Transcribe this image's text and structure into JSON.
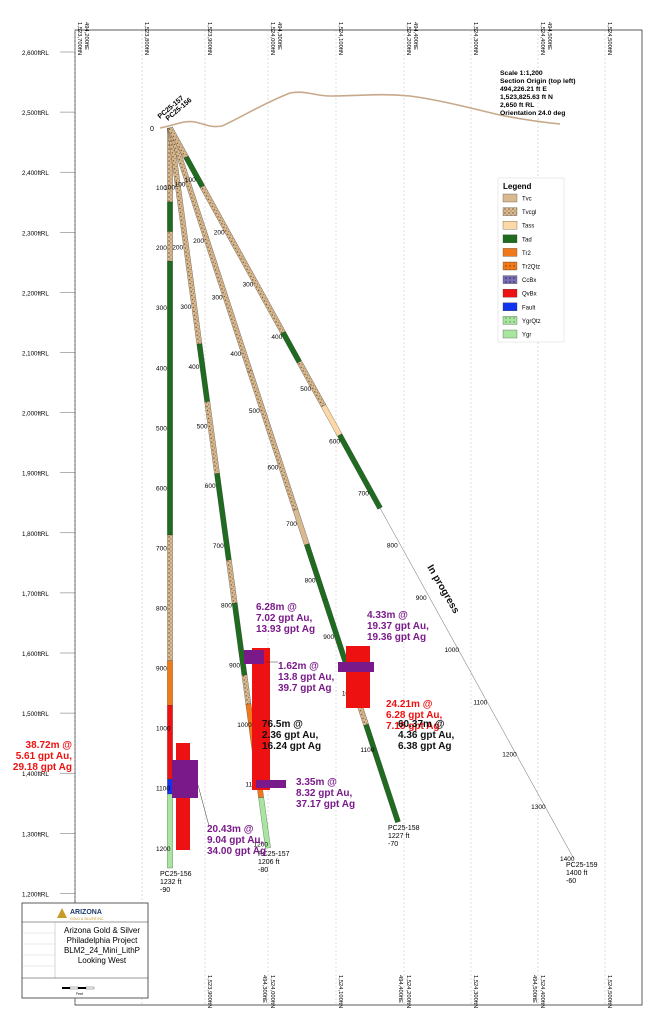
{
  "scale_info": {
    "lines": [
      "Scale 1:1,200",
      "Section Origin (top left)",
      "494,226.21 ft E",
      "1,523,825.63 ft N",
      "2,650 ft RL",
      "Orientation 24.0 deg"
    ]
  },
  "rl_labels": [
    "2,600ftRL",
    "2,500ftRL",
    "2,400ftRL",
    "2,300ftRL",
    "2,200ftRL",
    "2,100ftRL",
    "2,000ftRL",
    "1,900ftRL",
    "1,800ftRL",
    "1,700ftRL",
    "1,600ftRL",
    "1,500ftRL",
    "1,400ftRL",
    "1,300ftRL",
    "1,200ftRL"
  ],
  "top_grid_labels": [
    {
      "a": "1,523,700ftN",
      "b": "494,200ftE"
    },
    {
      "a": "1,523,800ftN",
      "b": ""
    },
    {
      "a": "1,523,900ftN",
      "b": ""
    },
    {
      "a": "1,524,000ftN",
      "b": "494,300ftE"
    },
    {
      "a": "1,524,100ftN",
      "b": ""
    },
    {
      "a": "1,524,200ftN",
      "b": "494,400ftE"
    },
    {
      "a": "1,524,300ftN",
      "b": ""
    },
    {
      "a": "1,524,400ftN",
      "b": "494,500ftE"
    },
    {
      "a": "1,524,500ftN",
      "b": ""
    }
  ],
  "bottom_grid_labels": [
    {
      "a": "1,523,900ftN",
      "b": ""
    },
    {
      "a": "1,524,000ftN",
      "b": "494,300ftE"
    },
    {
      "a": "1,524,100ftN",
      "b": ""
    },
    {
      "a": "1,524,200ftN",
      "b": "494,400ftE"
    },
    {
      "a": "1,524,300ftN",
      "b": ""
    },
    {
      "a": "1,524,400ftN",
      "b": "494,500ftE"
    },
    {
      "a": "1,524,500ftN",
      "b": ""
    }
  ],
  "legend": {
    "title": "Legend",
    "items": [
      {
        "code": "Tvc",
        "color": "#d9b98f",
        "pattern": "solid"
      },
      {
        "code": "Tvcgl",
        "color": "#d9b98f",
        "pattern": "dots"
      },
      {
        "code": "Tass",
        "color": "#fbd8a5",
        "pattern": "solid"
      },
      {
        "code": "Tad",
        "color": "#1f6b1f",
        "pattern": "solid"
      },
      {
        "code": "Tr2",
        "color": "#f07a1a",
        "pattern": "solid"
      },
      {
        "code": "Tr2Qtz",
        "color": "#f07a1a",
        "pattern": "dots"
      },
      {
        "code": "CcBx",
        "color": "#7b6fb3",
        "pattern": "dots"
      },
      {
        "code": "QvBx",
        "color": "#ee1111",
        "pattern": "solid"
      },
      {
        "code": "Fault",
        "color": "#1133ee",
        "pattern": "solid"
      },
      {
        "code": "YgrQtz",
        "color": "#a8e6a0",
        "pattern": "dots"
      },
      {
        "code": "Ygr",
        "color": "#a8e6a0",
        "pattern": "solid"
      }
    ]
  },
  "collar": {
    "label_a": "PC25-157",
    "label_b": "PC25-156",
    "depth_zero": "0"
  },
  "holes": [
    {
      "id": "PC25-156",
      "length": "1232 ft",
      "dip": "-90",
      "depth_labels": [
        "100",
        "200",
        "300",
        "400",
        "500",
        "600",
        "700",
        "800",
        "900",
        "1000",
        "1100",
        "1200"
      ]
    },
    {
      "id": "PC25-157",
      "length": "1206 ft",
      "dip": "-80",
      "depth_labels": [
        "100",
        "200",
        "300",
        "400",
        "500",
        "600",
        "700",
        "800",
        "900",
        "1000",
        "1100",
        "1200"
      ]
    },
    {
      "id": "PC25-158",
      "length": "1227 ft",
      "dip": "-70",
      "depth_labels": [
        "100",
        "200",
        "300",
        "400",
        "500",
        "600",
        "700",
        "800",
        "900",
        "1000",
        "1100"
      ]
    },
    {
      "id": "PC25-159",
      "length": "1400 ft",
      "dip": "-60",
      "depth_labels": [
        "100",
        "200",
        "300",
        "400",
        "500",
        "600",
        "700",
        "800",
        "900",
        "1000",
        "1100",
        "1200",
        "1300",
        "1400"
      ]
    }
  ],
  "in_progress": "In progress",
  "intercepts": [
    {
      "lines": [
        "38.72m @",
        "5.61 gpt Au,",
        "29.18 gpt Ag"
      ],
      "color": "#ee1111"
    },
    {
      "lines": [
        "20.43m @",
        "9.04 gpt Au,",
        "34.00 gpt Ag"
      ],
      "color": "#7a1a8a"
    },
    {
      "lines": [
        "6.28m @",
        "7.02 gpt Au,",
        "13.93 gpt Ag"
      ],
      "color": "#7a1a8a"
    },
    {
      "lines": [
        "1.62m @",
        "13.8 gpt Au,",
        "39.7 gpt Ag"
      ],
      "color": "#7a1a8a"
    },
    {
      "lines": [
        "76.5m @",
        "2.36 gpt Au,",
        "16.24 gpt Ag"
      ],
      "color": "#111111"
    },
    {
      "lines": [
        "3.35m @",
        "8.32 gpt Au,",
        "37.17 gpt Ag"
      ],
      "color": "#7a1a8a"
    },
    {
      "lines": [
        "4.33m @",
        "19.37 gpt Au,",
        "19.36 gpt Ag"
      ],
      "color": "#7a1a8a"
    },
    {
      "lines": [
        "24.21m @",
        "6.28 gpt Au,",
        "7.18 gpt Ag"
      ],
      "color": "#ee1111"
    },
    {
      "lines": [
        "60.37m @",
        "4.36 gpt Au,",
        "6.38 gpt Ag"
      ],
      "color": "#111111"
    }
  ],
  "title_block": {
    "company_logo": "ARIZONA",
    "company_sub": "GOLD & SILVER INC.",
    "lines": [
      "Arizona Gold & Silver",
      "Philadelphia Project",
      "BLM2_24_Mini_LithP",
      "Looking West"
    ],
    "scale_bar_text": "Feet"
  }
}
